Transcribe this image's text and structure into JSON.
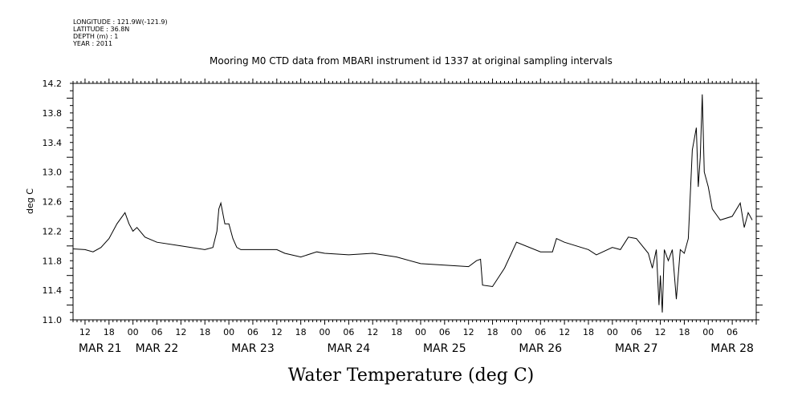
{
  "header": {
    "longitude": "LONGITUDE : 121.9W(-121.9)",
    "latitude": "LATITUDE : 36.8N",
    "depth": "DEPTH (m) : 1",
    "year": "YEAR : 2011"
  },
  "chart_data": {
    "type": "line",
    "title": "Mooring M0 CTD data from MBARI instrument id 1337 at original sampling intervals",
    "xlabel": "Water Temperature (deg C)",
    "ylabel": "deg C",
    "ylim": [
      11.0,
      14.2
    ],
    "yticks": [
      "11.0",
      "11.4",
      "11.8",
      "12.2",
      "12.6",
      "13.0",
      "13.4",
      "13.8",
      "14.2"
    ],
    "xlim": [
      "2011-03-21T09:00",
      "2011-03-28T12:00"
    ],
    "x_hour_labels": [
      "12",
      "18",
      "00",
      "06",
      "12",
      "18",
      "00",
      "06",
      "12",
      "18",
      "00",
      "06",
      "12",
      "18",
      "00",
      "06",
      "12",
      "18",
      "00",
      "06",
      "12",
      "18",
      "00",
      "06",
      "12",
      "18",
      "00",
      "06"
    ],
    "x_day_labels": [
      "MAR 21",
      "MAR 22",
      "MAR 23",
      "MAR 24",
      "MAR 25",
      "MAR 26",
      "MAR 27",
      "MAR 28"
    ],
    "grid": false,
    "legend": "none",
    "series": [
      {
        "x": [
          "2011-03-21T09:00",
          "2011-03-21T12:00",
          "2011-03-21T14:00",
          "2011-03-21T16:00",
          "2011-03-21T18:00",
          "2011-03-21T20:00",
          "2011-03-21T22:00",
          "2011-03-21T23:00",
          "2011-03-22T00:00",
          "2011-03-22T01:00",
          "2011-03-22T03:00",
          "2011-03-22T06:00",
          "2011-03-22T12:00",
          "2011-03-22T18:00",
          "2011-03-22T20:00",
          "2011-03-22T21:00",
          "2011-03-22T21:30",
          "2011-03-22T22:00",
          "2011-03-22T23:00",
          "2011-03-23T00:00",
          "2011-03-23T01:00",
          "2011-03-23T02:00",
          "2011-03-23T03:00",
          "2011-03-23T06:00",
          "2011-03-23T12:00",
          "2011-03-23T14:00",
          "2011-03-23T18:00",
          "2011-03-23T22:00",
          "2011-03-24T00:00",
          "2011-03-24T06:00",
          "2011-03-24T12:00",
          "2011-03-24T18:00",
          "2011-03-25T00:00",
          "2011-03-25T06:00",
          "2011-03-25T12:00",
          "2011-03-25T14:00",
          "2011-03-25T15:00",
          "2011-03-25T15:30",
          "2011-03-25T18:00",
          "2011-03-25T21:00",
          "2011-03-26T00:00",
          "2011-03-26T06:00",
          "2011-03-26T09:00",
          "2011-03-26T10:00",
          "2011-03-26T12:00",
          "2011-03-26T18:00",
          "2011-03-26T20:00",
          "2011-03-27T00:00",
          "2011-03-27T02:00",
          "2011-03-27T04:00",
          "2011-03-27T06:00",
          "2011-03-27T09:00",
          "2011-03-27T10:00",
          "2011-03-27T11:00",
          "2011-03-27T11:40",
          "2011-03-27T12:00",
          "2011-03-27T12:30",
          "2011-03-27T13:00",
          "2011-03-27T14:00",
          "2011-03-27T15:00",
          "2011-03-27T16:00",
          "2011-03-27T17:00",
          "2011-03-27T18:00",
          "2011-03-27T19:00",
          "2011-03-27T20:00",
          "2011-03-27T21:00",
          "2011-03-27T21:30",
          "2011-03-27T22:00",
          "2011-03-27T22:30",
          "2011-03-27T23:00",
          "2011-03-28T00:00",
          "2011-03-28T01:00",
          "2011-03-28T03:00",
          "2011-03-28T06:00",
          "2011-03-28T08:00",
          "2011-03-28T09:00",
          "2011-03-28T10:00",
          "2011-03-28T11:00"
        ],
        "y": [
          11.96,
          11.95,
          11.92,
          11.98,
          12.1,
          12.3,
          12.45,
          12.3,
          12.2,
          12.25,
          12.12,
          12.05,
          12.0,
          11.95,
          11.98,
          12.2,
          12.5,
          12.58,
          12.3,
          12.3,
          12.1,
          11.98,
          11.95,
          11.95,
          11.95,
          11.9,
          11.85,
          11.92,
          11.9,
          11.88,
          11.9,
          11.85,
          11.76,
          11.74,
          11.72,
          11.8,
          11.82,
          11.47,
          11.45,
          11.7,
          12.05,
          11.92,
          11.92,
          12.1,
          12.05,
          11.95,
          11.88,
          11.98,
          11.95,
          12.12,
          12.1,
          11.9,
          11.7,
          11.95,
          11.2,
          11.6,
          11.1,
          11.95,
          11.8,
          11.95,
          11.28,
          11.95,
          11.9,
          12.1,
          13.3,
          13.6,
          12.8,
          13.2,
          14.05,
          13.0,
          12.8,
          12.5,
          12.35,
          12.4,
          12.58,
          12.25,
          12.45,
          12.35
        ]
      }
    ]
  }
}
